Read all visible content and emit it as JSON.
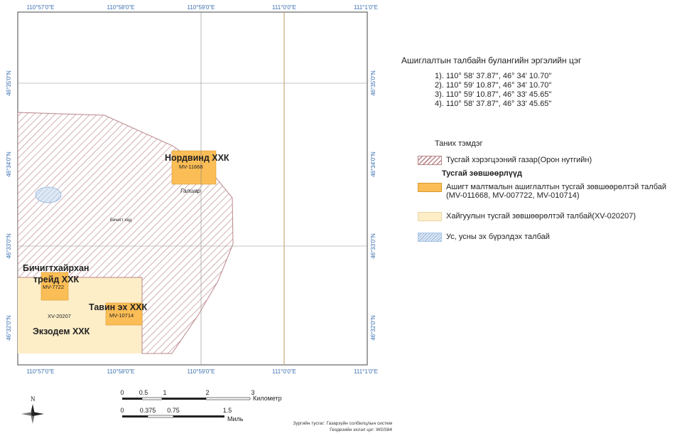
{
  "map": {
    "top_lon_labels": [
      "110°57'0\"E",
      "110°58'0\"E",
      "110°59'0\"E",
      "111°0'0\"E",
      "111°1'0\"E"
    ],
    "bottom_lon_labels": [
      "110°57'0\"E",
      "110°58'0\"E",
      "110°59'0\"E",
      "111°0'0\"E",
      "111°1'0\"E"
    ],
    "left_lat_labels": [
      "46°35'0\"N",
      "46°34'0\"N",
      "46°33'0\"N",
      "46°32'0\"N"
    ],
    "right_lat_labels": [
      "46°35'0\"N",
      "46°34'0\"N",
      "46°33'0\"N",
      "46°32'0\"N"
    ],
    "labels": {
      "nordwind_name": "Нордвинд ХХК",
      "nordwind_code": "MV-11668",
      "galshar": "Галшар",
      "bichigt_hyad": "Бичигт хяд",
      "bichigt_name_1": "Бичигтхайрхан",
      "bichigt_name_2": "трейд ХХК",
      "bichigt_code": "MV-7722",
      "tavin_name": "Тавин эх ХХК",
      "tavin_code": "MV-10714",
      "xv_code": "XV-20207",
      "ekzodem_name": "Экзодем ХХК"
    },
    "colors": {
      "hatch": "#b9868a",
      "license_orange": "#fbbd55",
      "exploration_cream": "#fdeec8",
      "water_blue": "#a9c6e6",
      "grid_line": "#8a8a8a",
      "meridian_line": "#c9a77a",
      "coord_text": "#3a6fb0"
    }
  },
  "panel": {
    "title": "Ашиглалтын талбайн булангийн эргэлийн цэг",
    "points": [
      "1). 110° 58' 37.87\",  46° 34' 10.70\"",
      "2). 110° 59' 10.87\",  46° 34' 10.70\"",
      "3). 110° 59' 10.87\",  46° 33' 45.65\"",
      "4). 110° 58' 37.87\",  46° 33' 45.65\""
    ]
  },
  "legend": {
    "title": "Таних тэмдэг",
    "special_use": "Тусгай хэрэгцээний газар(Орон нутгийн)",
    "licenses_heading": "Тусгай зөвшөөрлүүд",
    "mining_license": "Ашигт малтмалын ашиглалтын тусгай зөвшөөрөлтэй талбай (MV-011668, MV-007722, MV-010714)",
    "exploration_license": "Хайгуулын тусгай зөвшөөрөлтэй талбай(XV-020207)",
    "water": "Ус, усны эх бүрэлдэх талбай"
  },
  "scale": {
    "km_ticks": [
      "0",
      "0.5",
      "1",
      "2",
      "3"
    ],
    "km_unit": "Километр",
    "mile_ticks": [
      "0",
      "0.375",
      "0.75",
      "1.5"
    ],
    "mile_unit": "Миль"
  },
  "north_arrow": {
    "letter": "N"
  },
  "credits": {
    "line1": "Зургийн тусгаг: Газарзүйн солбилцлын систем",
    "line2": "Геодезийн эхлэл цэг: WGS84"
  }
}
